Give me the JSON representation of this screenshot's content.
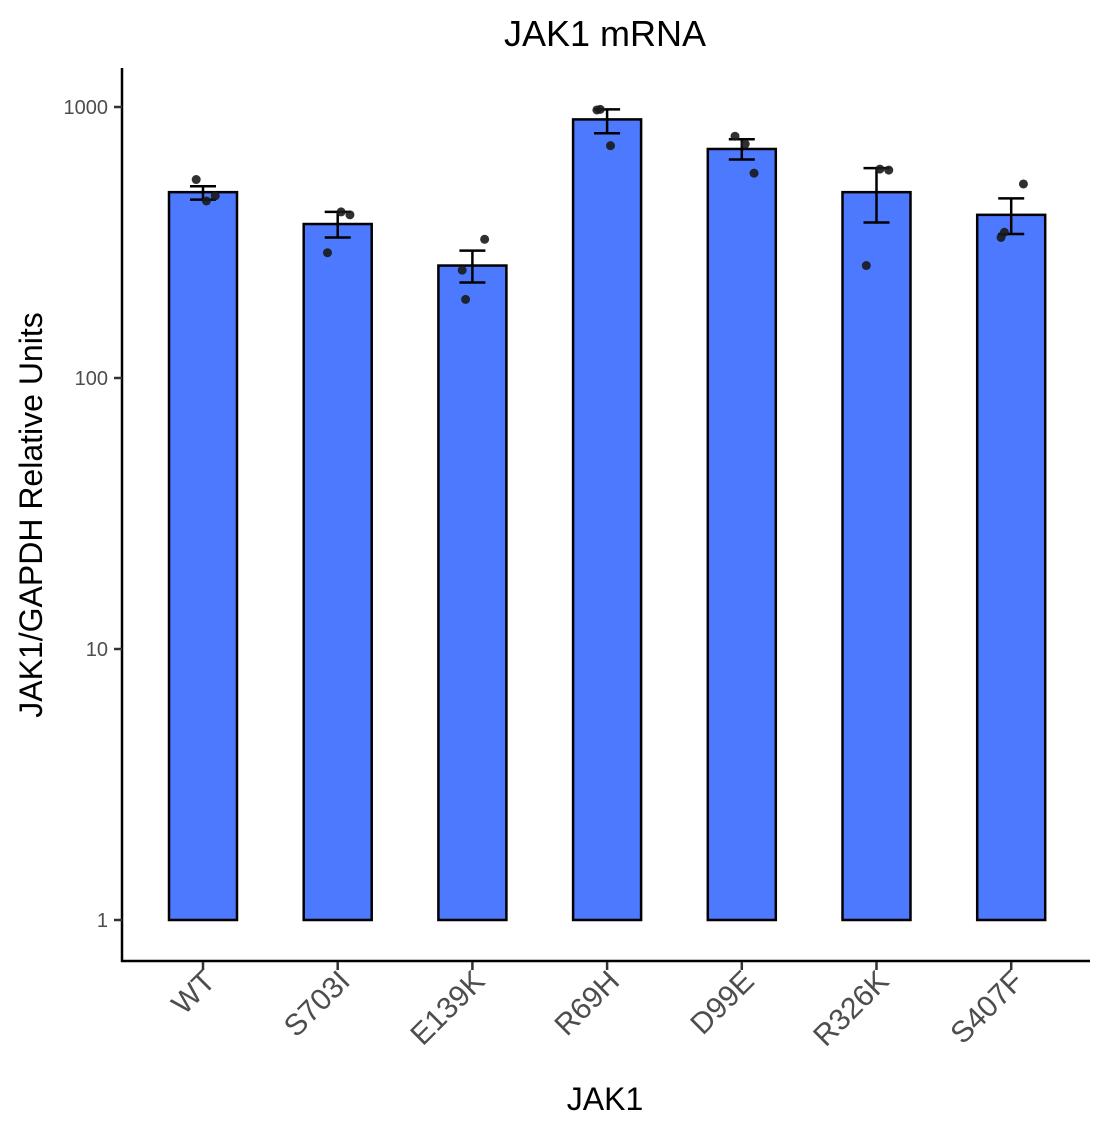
{
  "chart_data": {
    "type": "bar",
    "title": "JAK1 mRNA",
    "xlabel": "JAK1",
    "ylabel": "JAK1/GAPDH Relative Units",
    "yscale": "log",
    "ylim": [
      0.7,
      1400
    ],
    "yticks": [
      1,
      10,
      100,
      1000
    ],
    "ytick_labels": [
      "1",
      "10",
      "100",
      "1000"
    ],
    "categories": [
      "WT",
      "S703I",
      "E139K",
      "R69H",
      "D99E",
      "R326K",
      "S407F"
    ],
    "values": [
      485,
      370,
      260,
      900,
      700,
      485,
      400
    ],
    "error_low": [
      455,
      330,
      225,
      800,
      640,
      375,
      340
    ],
    "error_high": [
      510,
      410,
      295,
      980,
      760,
      595,
      460
    ],
    "points": [
      [
        540,
        450,
        470
      ],
      [
        410,
        400,
        290
      ],
      [
        325,
        250,
        195
      ],
      [
        975,
        980,
        720
      ],
      [
        780,
        730,
        570
      ],
      [
        590,
        585,
        260
      ],
      [
        520,
        330,
        345
      ]
    ],
    "bar_color": "#4d79ff",
    "point_color": "#1a1a1a",
    "grid": false,
    "legend": "none"
  }
}
